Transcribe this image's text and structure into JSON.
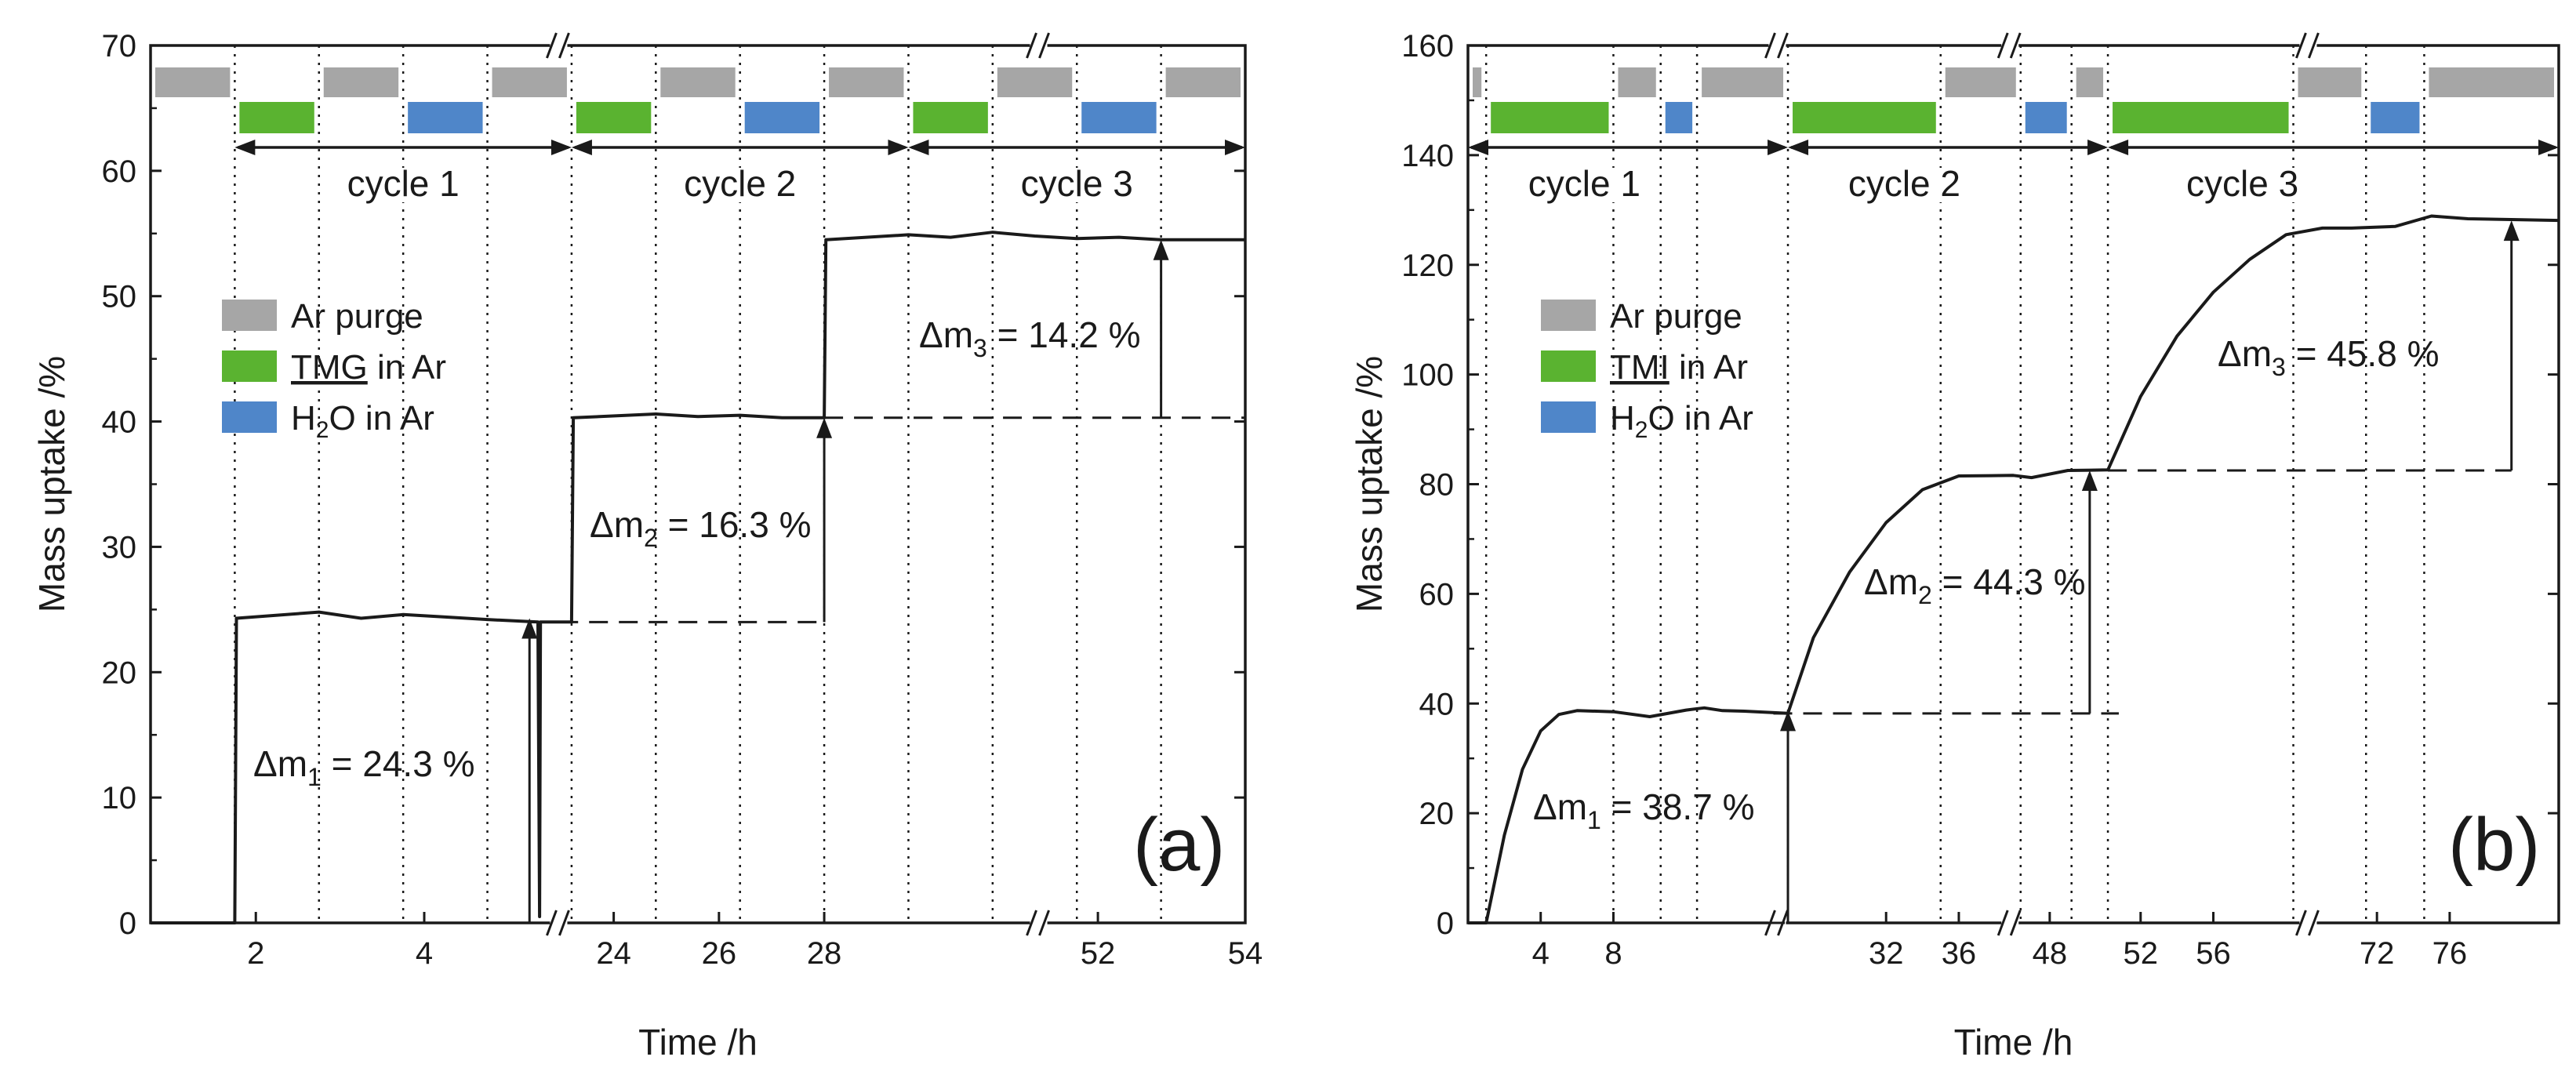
{
  "colors": {
    "ar": "#a6a6a6",
    "tmg": "#5ab330",
    "h2o": "#4f86c9",
    "axis": "#1a1a1a"
  },
  "chart_data": [
    {
      "type": "line",
      "panel": "(a)",
      "xlabel": "Time /h",
      "ylabel": "Mass uptake /%",
      "ylim": [
        0,
        70
      ],
      "yticks": [
        "0",
        "10",
        "20",
        "30",
        "40",
        "50",
        "60",
        "70"
      ],
      "xticks": [
        "2",
        "4",
        "24",
        "26",
        "28",
        "52",
        "54"
      ],
      "x_breaks": [
        "between 5 h and 23 h",
        "between 29 h and 51 h"
      ],
      "legend": [
        {
          "label": "Ar purge",
          "color_key": "ar"
        },
        {
          "label": "TMG in Ar",
          "color_key": "tmg"
        },
        {
          "label": "H2O in Ar",
          "color_key": "h2o"
        }
      ],
      "cycles": [
        "cycle 1",
        "cycle 2",
        "cycle 3"
      ],
      "deltas": [
        {
          "sym": "Δm",
          "sub": "1",
          "text": " = 24.3 %",
          "value": 24.3
        },
        {
          "sym": "Δm",
          "sub": "2",
          "text": " = 16.3 %",
          "value": 16.3
        },
        {
          "sym": "Δm",
          "sub": "3",
          "text": " = 14.2 %",
          "value": 14.2
        }
      ],
      "steps": [
        {
          "label": "Ar purge",
          "start": 0.0,
          "end": 1.0
        },
        {
          "label": "TMG in Ar",
          "start": 1.0,
          "end": 2.0
        },
        {
          "label": "Ar purge",
          "start": 2.0,
          "end": 3.0
        },
        {
          "label": "H2O in Ar",
          "start": 3.0,
          "end": 4.0
        },
        {
          "label": "Ar purge",
          "start": 4.0,
          "end": 5.0
        },
        {
          "label": "TMG in Ar",
          "start": 5.0,
          "end": 6.0
        },
        {
          "label": "Ar purge",
          "start": 6.0,
          "end": 7.0
        },
        {
          "label": "H2O in Ar",
          "start": 7.0,
          "end": 8.0
        },
        {
          "label": "Ar purge",
          "start": 8.0,
          "end": 9.0
        },
        {
          "label": "TMG in Ar",
          "start": 9.0,
          "end": 10.0
        },
        {
          "label": "Ar purge",
          "start": 10.0,
          "end": 11.0
        },
        {
          "label": "H2O in Ar",
          "start": 11.0,
          "end": 12.0
        },
        {
          "label": "Ar purge",
          "start": 12.0,
          "end": 13.0
        }
      ],
      "series": [
        {
          "name": "mass uptake",
          "points": [
            [
              0.0,
              0
            ],
            [
              1.0,
              0
            ],
            [
              1.02,
              24.3
            ],
            [
              2.0,
              24.8
            ],
            [
              2.5,
              24.3
            ],
            [
              3.0,
              24.6
            ],
            [
              3.5,
              24.4
            ],
            [
              4.0,
              24.2
            ],
            [
              4.6,
              24.0
            ],
            [
              4.62,
              0.5
            ],
            [
              4.63,
              24.0
            ],
            [
              5.0,
              24.0
            ],
            [
              5.02,
              40.3
            ],
            [
              6.0,
              40.6
            ],
            [
              6.5,
              40.4
            ],
            [
              7.0,
              40.5
            ],
            [
              7.5,
              40.3
            ],
            [
              8.0,
              40.3
            ],
            [
              8.02,
              54.5
            ],
            [
              9.0,
              54.9
            ],
            [
              9.5,
              54.7
            ],
            [
              10.0,
              55.1
            ],
            [
              10.5,
              54.8
            ],
            [
              11.0,
              54.6
            ],
            [
              11.5,
              54.7
            ],
            [
              12.0,
              54.5
            ],
            [
              13.0,
              54.5
            ]
          ]
        }
      ]
    },
    {
      "type": "line",
      "panel": "(b)",
      "xlabel": "Time /h",
      "ylabel": "Mass uptake /%",
      "ylim": [
        0,
        160
      ],
      "yticks": [
        "0",
        "20",
        "40",
        "60",
        "80",
        "100",
        "120",
        "140",
        "160"
      ],
      "xticks": [
        "4",
        "8",
        "32",
        "36",
        "48",
        "52",
        "56",
        "72",
        "76"
      ],
      "x_breaks": [
        "between 10 h and 30 h",
        "between 37 h and 47 h",
        "between 57 h and 71 h"
      ],
      "legend": [
        {
          "label": "Ar purge",
          "color_key": "ar"
        },
        {
          "label": "TMI in Ar",
          "color_key": "tmg"
        },
        {
          "label": "H2O in Ar",
          "color_key": "h2o"
        }
      ],
      "cycles": [
        "cycle 1",
        "cycle 2",
        "cycle 3"
      ],
      "deltas": [
        {
          "sym": "Δm",
          "sub": "1",
          "text": " = 38.7 %",
          "value": 38.7
        },
        {
          "sym": "Δm",
          "sub": "2",
          "text": " = 44.3 %",
          "value": 44.3
        },
        {
          "sym": "Δm",
          "sub": "3",
          "text": " = 45.8 %",
          "value": 45.8
        }
      ],
      "steps": [
        {
          "label": "Ar purge",
          "start": 0.0,
          "end": 0.5
        },
        {
          "label": "TMI in Ar",
          "start": 0.5,
          "end": 4.0
        },
        {
          "label": "Ar purge",
          "start": 4.0,
          "end": 5.3
        },
        {
          "label": "H2O in Ar",
          "start": 5.3,
          "end": 6.3
        },
        {
          "label": "Ar purge",
          "start": 6.3,
          "end": 8.8
        },
        {
          "label": "TMI in Ar",
          "start": 8.8,
          "end": 13.0
        },
        {
          "label": "Ar purge",
          "start": 13.0,
          "end": 15.2
        },
        {
          "label": "H2O in Ar",
          "start": 15.2,
          "end": 16.6
        },
        {
          "label": "Ar purge",
          "start": 16.6,
          "end": 17.6
        },
        {
          "label": "TMI in Ar",
          "start": 17.6,
          "end": 22.7
        },
        {
          "label": "Ar purge",
          "start": 22.7,
          "end": 24.7
        },
        {
          "label": "H2O in Ar",
          "start": 24.7,
          "end": 26.3
        },
        {
          "label": "Ar purge",
          "start": 26.3,
          "end": 30.0
        }
      ],
      "series": [
        {
          "name": "mass uptake",
          "points": [
            [
              0.0,
              0
            ],
            [
              0.5,
              0
            ],
            [
              1.0,
              16
            ],
            [
              1.5,
              28
            ],
            [
              2.0,
              35
            ],
            [
              2.5,
              38
            ],
            [
              3.0,
              38.7
            ],
            [
              4.0,
              38.5
            ],
            [
              5.0,
              37.6
            ],
            [
              6.0,
              38.8
            ],
            [
              6.5,
              39.2
            ],
            [
              7.0,
              38.7
            ],
            [
              7.6,
              38.6
            ],
            [
              8.8,
              38.2
            ],
            [
              9.5,
              52
            ],
            [
              10.5,
              64
            ],
            [
              11.5,
              73
            ],
            [
              12.5,
              79
            ],
            [
              13.5,
              81.5
            ],
            [
              15.0,
              81.6
            ],
            [
              15.5,
              81.2
            ],
            [
              16.5,
              82.5
            ],
            [
              17.6,
              82.6
            ],
            [
              18.5,
              96
            ],
            [
              19.5,
              107
            ],
            [
              20.5,
              115
            ],
            [
              21.5,
              121
            ],
            [
              22.5,
              125.5
            ],
            [
              23.5,
              126.7
            ],
            [
              24.3,
              126.7
            ],
            [
              25.5,
              127
            ],
            [
              26.5,
              128.9
            ],
            [
              27.5,
              128.4
            ],
            [
              30.0,
              128.1
            ]
          ]
        }
      ]
    }
  ]
}
